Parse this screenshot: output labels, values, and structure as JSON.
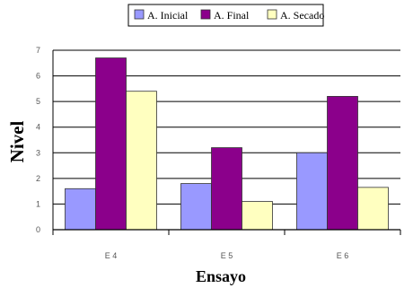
{
  "chart_data": {
    "type": "bar",
    "categories": [
      "E 4",
      "E 5",
      "E 6"
    ],
    "series": [
      {
        "name": "A. Inicial",
        "color": "#9999ff",
        "values": [
          1.6,
          1.8,
          3.0
        ]
      },
      {
        "name": "A. Final",
        "color": "#8b008b",
        "values": [
          6.7,
          3.2,
          5.2
        ]
      },
      {
        "name": "A. Secado",
        "color": "#ffffc0",
        "values": [
          5.4,
          1.1,
          1.65
        ]
      }
    ],
    "xlabel": "Ensayo",
    "ylabel": "Nivel",
    "ylim": [
      0,
      7
    ],
    "yticks": [
      "0",
      "1",
      "2",
      "3",
      "4",
      "5",
      "6",
      "7"
    ],
    "grid": "horizontal",
    "legend": "top"
  }
}
